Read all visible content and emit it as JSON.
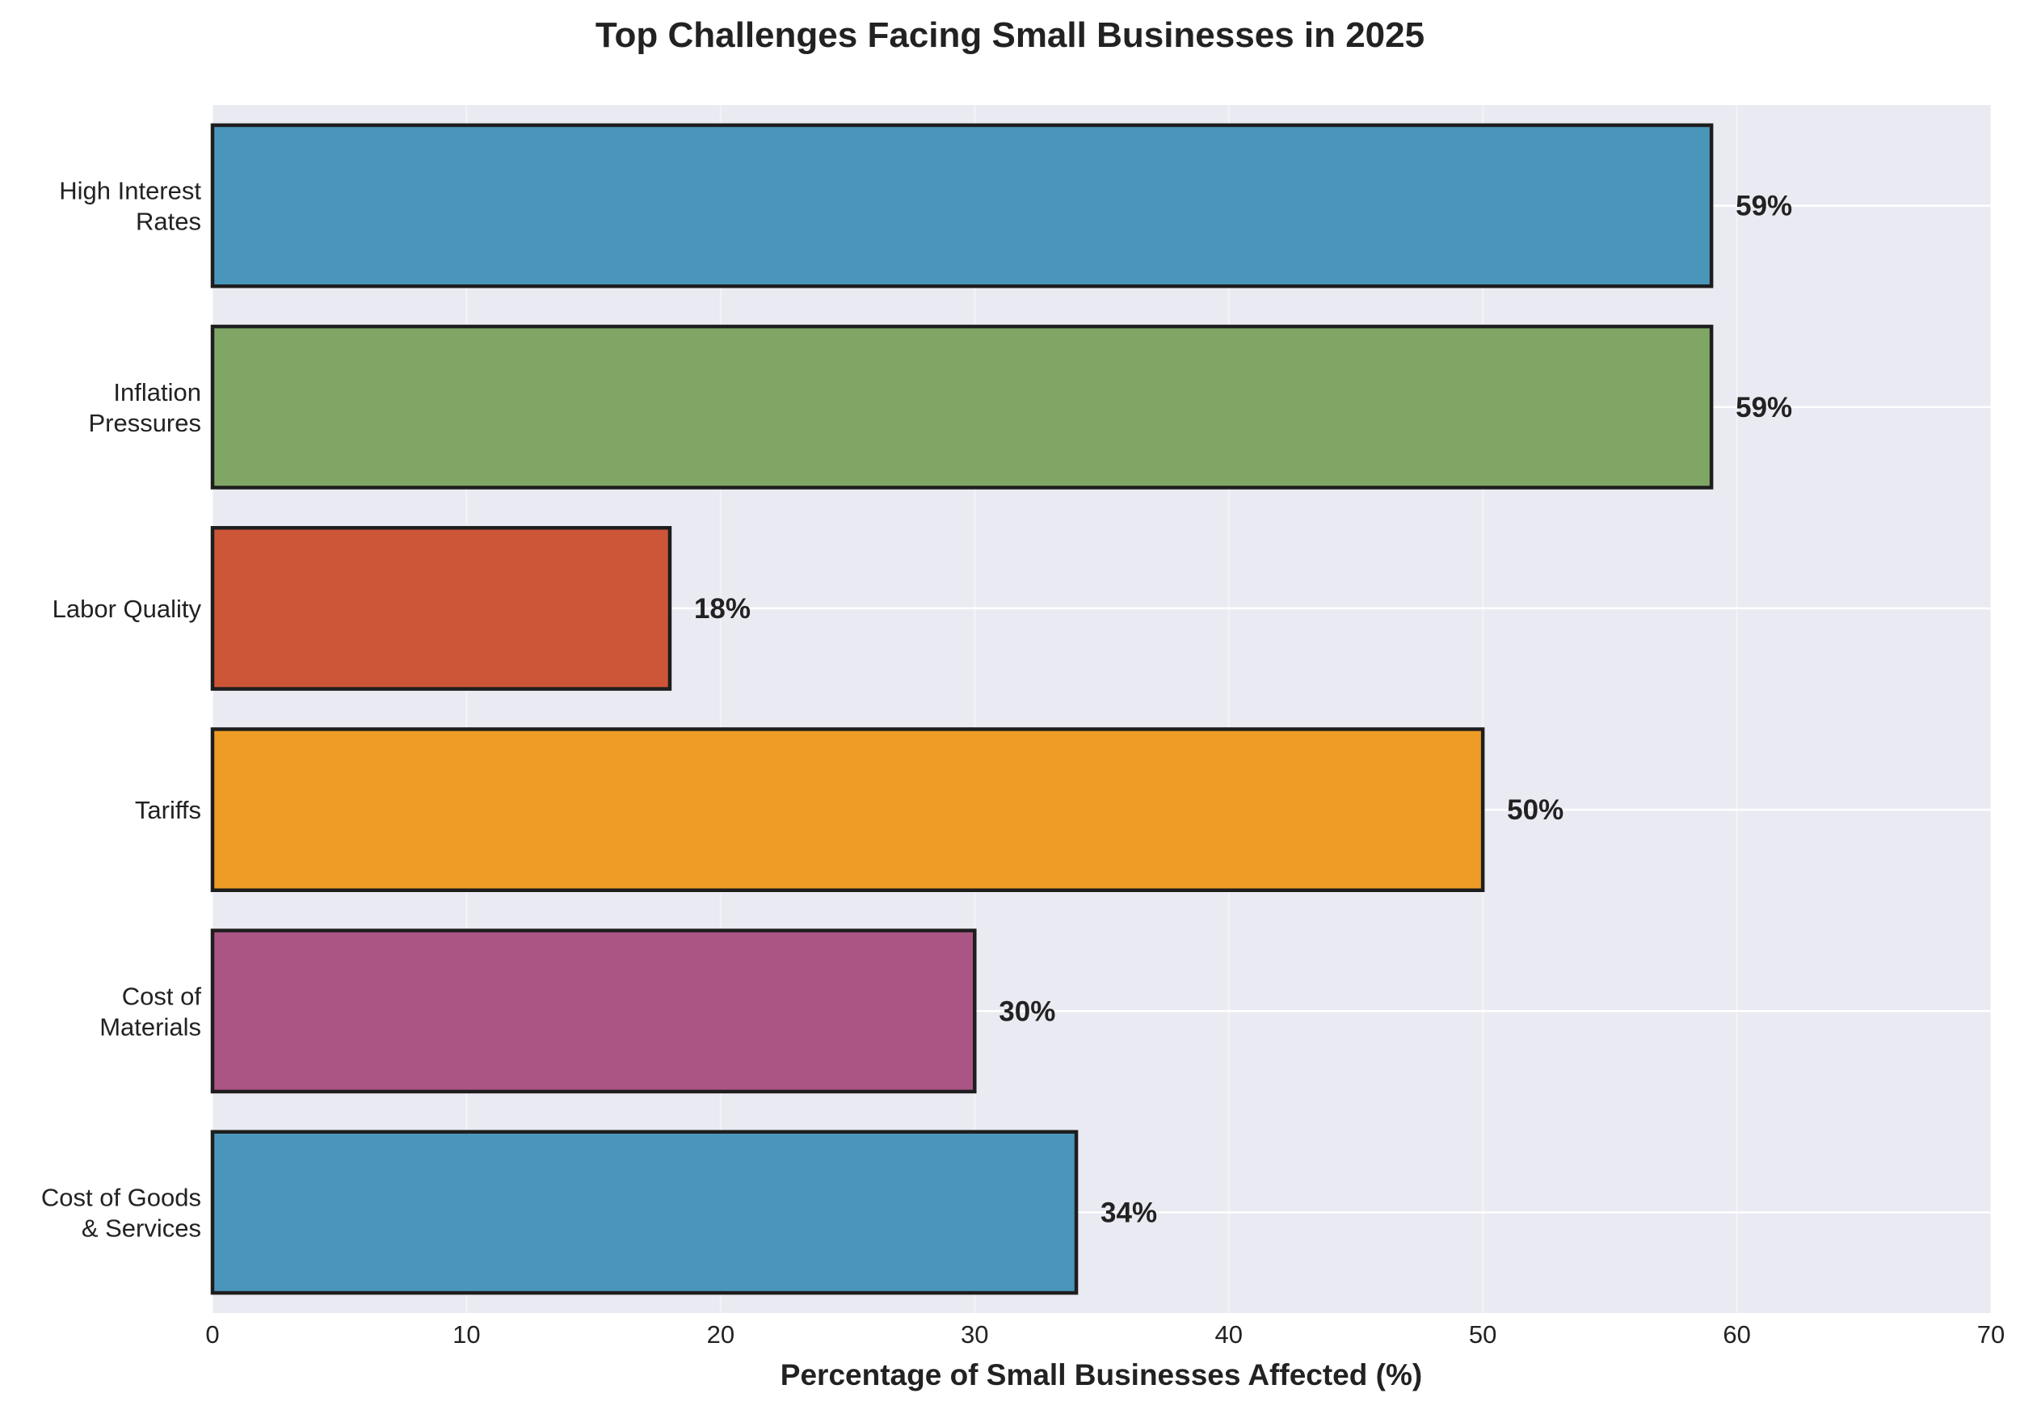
{
  "chart_data": {
    "type": "bar",
    "orientation": "horizontal",
    "title": "Top Challenges Facing Small Businesses in 2025",
    "xlabel": "Percentage of Small Businesses Affected (%)",
    "ylabel": "",
    "xlim": [
      0,
      70
    ],
    "xticks": [
      0,
      10,
      20,
      30,
      40,
      50,
      60,
      70
    ],
    "grid": true,
    "background": "#EAEAF2",
    "categories": [
      [
        "High Interest",
        "Rates"
      ],
      [
        "Inflation",
        "Pressures"
      ],
      [
        "Labor Quality"
      ],
      [
        "Tariffs"
      ],
      [
        "Cost of",
        "Materials"
      ],
      [
        "Cost of Goods",
        "& Services"
      ]
    ],
    "values": [
      59,
      59,
      18,
      50,
      30,
      34
    ],
    "value_labels": [
      "59%",
      "59%",
      "18%",
      "50%",
      "30%",
      "34%"
    ],
    "colors": [
      "#4A95BA",
      "#7FA665",
      "#CD5639",
      "#EE9C25",
      "#AB5585",
      "#4A95BA"
    ],
    "edge_color": "#1E1E1E"
  }
}
